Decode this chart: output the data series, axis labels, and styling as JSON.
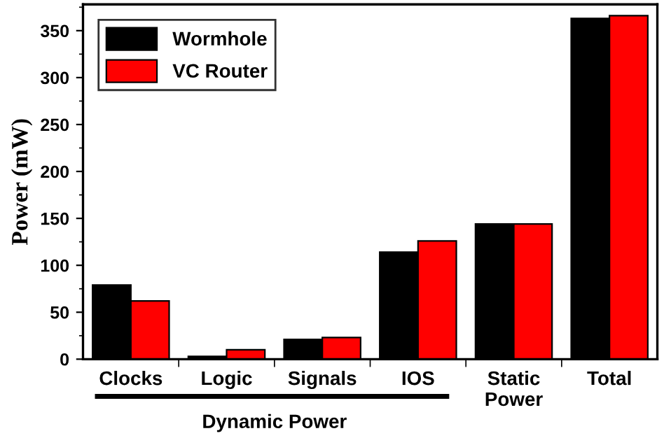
{
  "chart_data": {
    "type": "bar",
    "ylabel": "Power (mW)",
    "categories": [
      "Clocks",
      "Logic",
      "Signals",
      "IOS",
      "Static\nPower",
      "Total"
    ],
    "series": [
      {
        "name": "Wormhole",
        "color": "#000000",
        "values": [
          79,
          3,
          21,
          114,
          144,
          363
        ]
      },
      {
        "name": "VC Router",
        "color": "#ff0000",
        "values": [
          62,
          10,
          23,
          126,
          144,
          366
        ]
      }
    ],
    "ylim": [
      0,
      378
    ],
    "yticks": [
      0,
      50,
      100,
      150,
      200,
      250,
      300,
      350
    ],
    "annotations": [
      "Dynamic Power"
    ],
    "grid": false,
    "legend": "top left"
  }
}
